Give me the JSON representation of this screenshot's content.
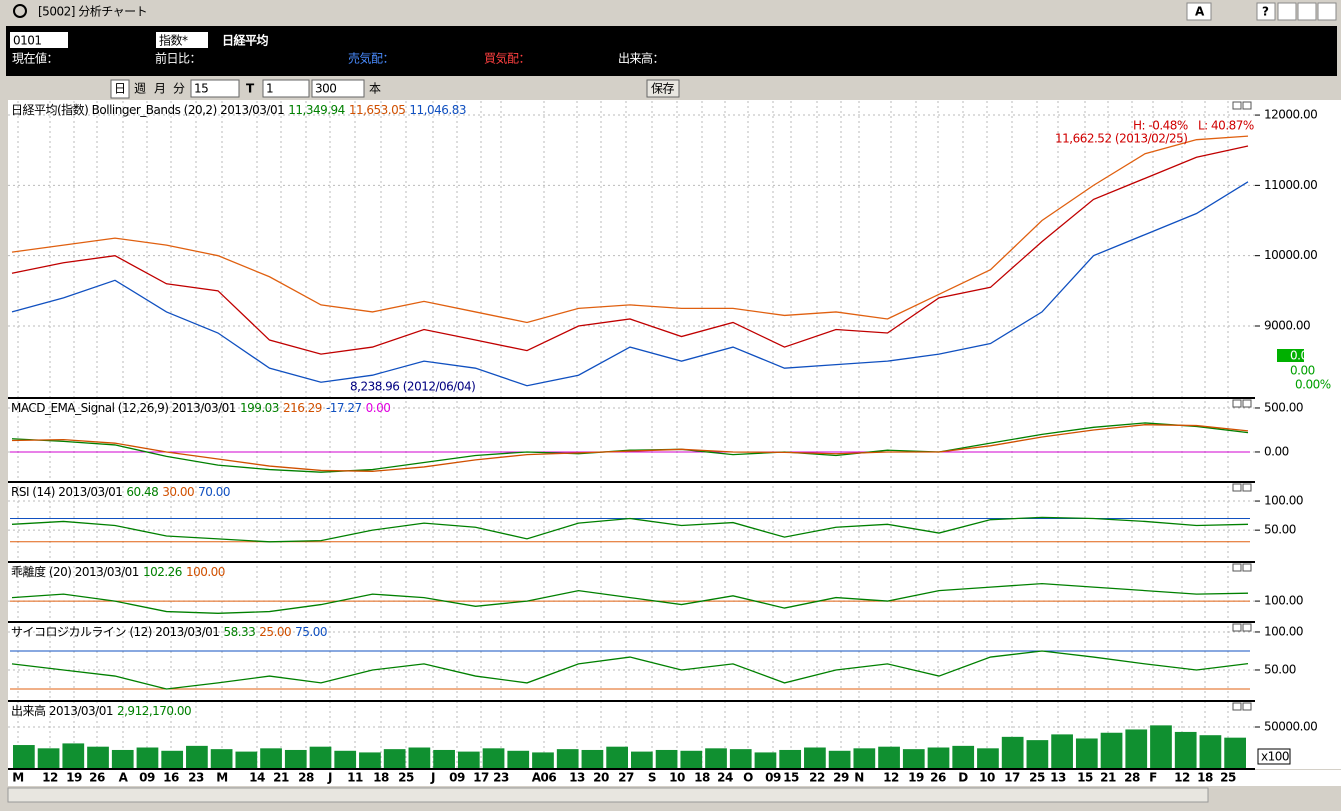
{
  "window": {
    "title": "[5002] 分析チャート",
    "buttons": [
      "A",
      "?"
    ]
  },
  "toolbar": {
    "code": "0101",
    "kind": "指数*",
    "name": "日経平均",
    "fields": [
      "現在値：",
      "前日比：",
      "売気配：",
      "買気配：",
      "出来高："
    ],
    "period_buttons": [
      "日",
      "週",
      "月",
      "分"
    ],
    "minutes": "15",
    "t_label": "T",
    "t_value": "1",
    "count": "300",
    "count_unit": "本",
    "save": "保存"
  },
  "x_axis": {
    "labels": [
      "M",
      "12",
      "19",
      "26",
      "A",
      "09",
      "16",
      "23",
      "M",
      "14",
      "21",
      "28",
      "J",
      "11",
      "18",
      "25",
      "J",
      "09",
      "17",
      "23",
      "A06",
      "13",
      "20",
      "27",
      "S",
      "10",
      "18",
      "24",
      "O",
      "09",
      "15",
      "22",
      "29",
      "N",
      "12",
      "19",
      "26",
      "D",
      "10",
      "17",
      "25",
      "13",
      "15",
      "21",
      "28",
      "F",
      "12",
      "18",
      "25"
    ],
    "volume_unit": "x100"
  },
  "chart_data": [
    {
      "type": "line",
      "header": [
        {
          "text": "日経平均(指数) Bollinger_Bands (20,2) 2013/03/01",
          "color": "#000000"
        },
        {
          "text": "11,349.94",
          "color": "#008000"
        },
        {
          "text": "11,653.05",
          "color": "#d05000"
        },
        {
          "text": "11,046.83",
          "color": "#1050c0"
        }
      ],
      "ylim": [
        7990,
        12200
      ],
      "yticks": [
        {
          "value": 12000,
          "label": "12000.00"
        },
        {
          "value": 11000,
          "label": "11000.00"
        },
        {
          "value": 10000,
          "label": "10000.00"
        },
        {
          "value": 9000,
          "label": "9000.00"
        }
      ],
      "series": [
        {
          "name": "Upper",
          "color": "#e06010",
          "values": [
            10050,
            10150,
            10250,
            10150,
            10000,
            9700,
            9300,
            9200,
            9350,
            9200,
            9050,
            9250,
            9300,
            9250,
            9250,
            9150,
            9200,
            9100,
            9450,
            9800,
            10500,
            11000,
            11450,
            11650,
            11700
          ]
        },
        {
          "name": "Close",
          "color": "#c00000",
          "values": [
            9750,
            9900,
            10000,
            9600,
            9500,
            8800,
            8600,
            8700,
            8950,
            8800,
            8650,
            9000,
            9100,
            8850,
            9050,
            8700,
            8950,
            8900,
            9400,
            9550,
            10200,
            10800,
            11100,
            11400,
            11560
          ]
        },
        {
          "name": "Lower",
          "color": "#1050c0",
          "values": [
            9200,
            9400,
            9650,
            9200,
            8900,
            8400,
            8200,
            8300,
            8500,
            8400,
            8150,
            8300,
            8700,
            8500,
            8700,
            8400,
            8450,
            8500,
            8600,
            8750,
            9200,
            10000,
            10300,
            10600,
            11050
          ]
        }
      ],
      "annotations": [
        {
          "text": "H: -0.48%",
          "color": "#d00000"
        },
        {
          "text": "L: 40.87%",
          "color": "#d00000"
        },
        {
          "text": "11,662.52 (2013/02/25)",
          "color": "#d00000"
        },
        {
          "text": "8,238.96 (2012/06/04)",
          "color": "#000080"
        },
        {
          "text": "0.00",
          "color": "#ffffff"
        },
        {
          "text": "0.00",
          "color": "#00a000"
        },
        {
          "text": "0.00%",
          "color": "#00a000"
        }
      ]
    },
    {
      "type": "line",
      "header": [
        {
          "text": "MACD_EMA_Signal (12,26,9) 2013/03/01",
          "color": "#000000"
        },
        {
          "text": "199.03",
          "color": "#008000"
        },
        {
          "text": "216.29",
          "color": "#d05000"
        },
        {
          "text": "-17.27",
          "color": "#1050c0"
        },
        {
          "text": "0.00",
          "color": "#e000e0"
        }
      ],
      "ylim": [
        -330,
        602
      ],
      "yticks": [
        {
          "value": 500,
          "label": "500.00"
        },
        {
          "value": 0,
          "label": "0.00"
        }
      ],
      "levels": [
        {
          "value": 0,
          "color": "#d000d0"
        }
      ],
      "series": [
        {
          "name": "MACD",
          "color": "#008000",
          "values": [
            150,
            120,
            80,
            -50,
            -150,
            -200,
            -230,
            -200,
            -120,
            -40,
            0,
            -20,
            20,
            30,
            -30,
            0,
            -40,
            20,
            0,
            100,
            200,
            280,
            330,
            290,
            220
          ]
        },
        {
          "name": "Signal",
          "color": "#d05000",
          "values": [
            130,
            140,
            100,
            0,
            -80,
            -160,
            -210,
            -220,
            -170,
            -90,
            -30,
            -10,
            10,
            30,
            0,
            -5,
            -20,
            0,
            0,
            70,
            170,
            250,
            310,
            300,
            240
          ]
        }
      ]
    },
    {
      "type": "line",
      "header": [
        {
          "text": "RSI (14) 2013/03/01",
          "color": "#000000"
        },
        {
          "text": "60.48",
          "color": "#008000"
        },
        {
          "text": "30.00",
          "color": "#d05000"
        },
        {
          "text": "70.00",
          "color": "#1050c0"
        }
      ],
      "ylim": [
        -3,
        131
      ],
      "yticks": [
        {
          "value": 100,
          "label": "100.00"
        },
        {
          "value": 50,
          "label": "50.00"
        }
      ],
      "levels": [
        {
          "value": 30,
          "color": "#e06010"
        },
        {
          "value": 70,
          "color": "#1050c0"
        }
      ],
      "series": [
        {
          "name": "RSI",
          "color": "#008000",
          "values": [
            60,
            65,
            58,
            40,
            35,
            30,
            32,
            50,
            62,
            55,
            35,
            62,
            70,
            58,
            63,
            38,
            55,
            60,
            45,
            68,
            72,
            70,
            65,
            58,
            60
          ]
        }
      ]
    },
    {
      "type": "line",
      "header": [
        {
          "text": "乖離度 (20) 2013/03/01",
          "color": "#000000"
        },
        {
          "text": "102.26",
          "color": "#008000"
        },
        {
          "text": "100.00",
          "color": "#d05000"
        }
      ],
      "ylim": [
        94.3,
        110.9
      ],
      "yticks": [
        {
          "value": 100,
          "label": "100.00"
        }
      ],
      "levels": [
        {
          "value": 100,
          "color": "#e06010"
        }
      ],
      "series": [
        {
          "name": "Kairi",
          "color": "#008000",
          "values": [
            101,
            102,
            100,
            97,
            96.5,
            97,
            99,
            102,
            101,
            98.5,
            100,
            103,
            101,
            99,
            101.5,
            98,
            101,
            100,
            103,
            104,
            105,
            104,
            103,
            102,
            102.26
          ]
        }
      ]
    },
    {
      "type": "line",
      "header": [
        {
          "text": "サイコロジカルライン (12) 2013/03/01",
          "color": "#000000"
        },
        {
          "text": "58.33",
          "color": "#008000"
        },
        {
          "text": "25.00",
          "color": "#d05000"
        },
        {
          "text": "75.00",
          "color": "#1050c0"
        }
      ],
      "ylim": [
        10.5,
        111.8
      ],
      "yticks": [
        {
          "value": 100,
          "label": "100.00"
        },
        {
          "value": 50,
          "label": "50.00"
        }
      ],
      "levels": [
        {
          "value": 25,
          "color": "#e06010"
        },
        {
          "value": 75,
          "color": "#1050c0"
        }
      ],
      "series": [
        {
          "name": "Psychological",
          "color": "#008000",
          "values": [
            58,
            50,
            42,
            25,
            33,
            42,
            33,
            50,
            58,
            42,
            33,
            58,
            67,
            50,
            58,
            33,
            50,
            58,
            42,
            67,
            75,
            67,
            58,
            50,
            58.33
          ]
        }
      ]
    },
    {
      "type": "bar",
      "header": [
        {
          "text": "出来高 2013/03/01",
          "color": "#000000"
        },
        {
          "text": "2,912,170.00",
          "color": "#008000"
        }
      ],
      "ylim": [
        0,
        80500
      ],
      "yticks": [
        {
          "value": 50000,
          "label": "50000.00"
        }
      ],
      "series": [
        {
          "name": "Volume",
          "color": "#109030",
          "values": [
            28000,
            24000,
            30000,
            26000,
            22000,
            25000,
            21000,
            27000,
            23000,
            20000,
            24000,
            22000,
            26000,
            21000,
            19000,
            23000,
            25000,
            22000,
            20000,
            24000,
            21000,
            19000,
            23000,
            22000,
            26000,
            20000,
            22000,
            21000,
            24000,
            23000,
            19000,
            22000,
            25000,
            21000,
            24000,
            26000,
            23000,
            25000,
            27000,
            24000,
            38000,
            34000,
            41000,
            36000,
            43000,
            47000,
            52000,
            44000,
            40000,
            37000
          ]
        }
      ]
    }
  ]
}
